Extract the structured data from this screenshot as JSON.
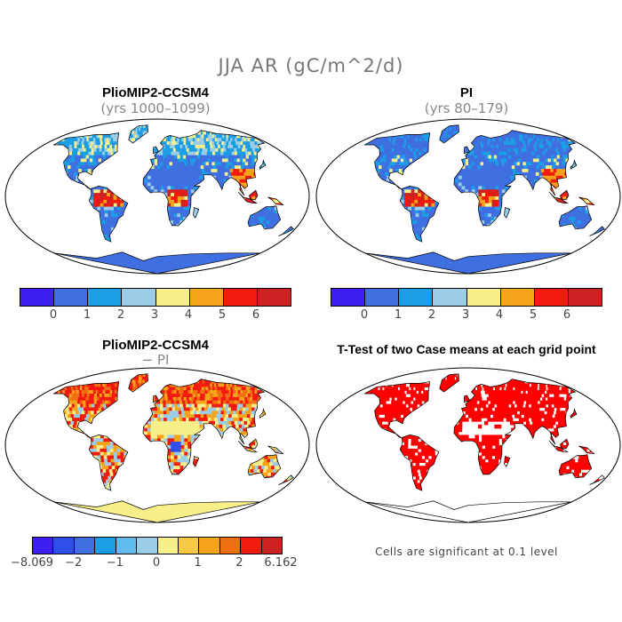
{
  "figure": {
    "title": "JJA AR (gC/m^2/d)"
  },
  "panels": {
    "top_left": {
      "title": "PlioMIP2-CCSM4",
      "subtitle": "(yrs 1000–1099)"
    },
    "top_right": {
      "title": "PI",
      "subtitle": "(yrs 80–179)"
    },
    "bottom_left": {
      "title": "PlioMIP2-CCSM4",
      "subtitle": "− PI"
    },
    "bottom_right": {
      "title": "T-Test of two Case means at each grid point",
      "note": "Cells are significant at 0.1 level"
    }
  },
  "colorbar_abs": {
    "colors": [
      "#3d1ff0",
      "#3f6fe0",
      "#1c9ee6",
      "#9ccde8",
      "#f7ef8a",
      "#f6a31c",
      "#f21b0f",
      "#cc2222"
    ],
    "labels": [
      "0",
      "1",
      "2",
      "3",
      "4",
      "5",
      "6"
    ]
  },
  "colorbar_diff": {
    "colors": [
      "#3d1ff0",
      "#2e4fe8",
      "#3f6fe0",
      "#1c9ee6",
      "#5fbcec",
      "#9ccde8",
      "#f7ef8a",
      "#f7c844",
      "#f6a31c",
      "#f06f12",
      "#f21b0f",
      "#cc2222"
    ],
    "labels": [
      "−8.069",
      "−2",
      "−1",
      "0",
      "1",
      "2",
      "6.162"
    ]
  },
  "colors": {
    "ocean": "#ffffff",
    "land_abs": "#3f6fe0",
    "significant": "#ff0000"
  }
}
